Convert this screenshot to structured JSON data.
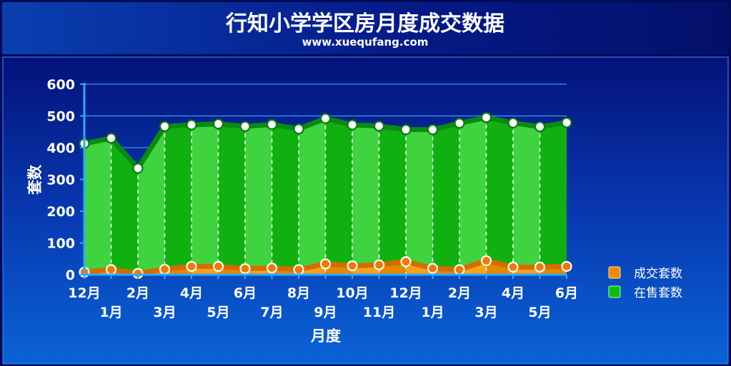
{
  "header": {
    "title": "行知小学学区房月度成交数据",
    "subtitle": "www.xuequfang.com"
  },
  "colors": {
    "sales": "#f08a00",
    "listings": "#0fbd0f",
    "background_top": "#04127a",
    "background_bottom": "#0a5fd0"
  },
  "chart_data": {
    "type": "area",
    "title": "行知小学学区房月度成交数据",
    "subtitle": "www.xuequfang.com",
    "xlabel": "月度",
    "ylabel": "套数",
    "ylim": [
      0,
      600
    ],
    "yticks": [
      0,
      100,
      200,
      300,
      400,
      500,
      600
    ],
    "grid": true,
    "legend_position": "right",
    "categories": [
      "12月",
      "1月",
      "2月",
      "3月",
      "4月",
      "5月",
      "6月",
      "7月",
      "8月",
      "9月",
      "10月",
      "11月",
      "12月",
      "1月",
      "2月",
      "3月",
      "4月",
      "5月",
      "6月"
    ],
    "series": [
      {
        "name": "成交套数",
        "color": "#f08a00",
        "values": [
          8,
          16,
          4,
          17,
          26,
          26,
          19,
          21,
          16,
          34,
          28,
          31,
          41,
          20,
          16,
          44,
          24,
          24,
          26
        ]
      },
      {
        "name": "在售套数",
        "color": "#0fbd0f",
        "values": [
          413,
          430,
          335,
          467,
          472,
          475,
          467,
          473,
          459,
          492,
          472,
          468,
          457,
          457,
          477,
          495,
          478,
          466,
          479
        ]
      }
    ]
  }
}
